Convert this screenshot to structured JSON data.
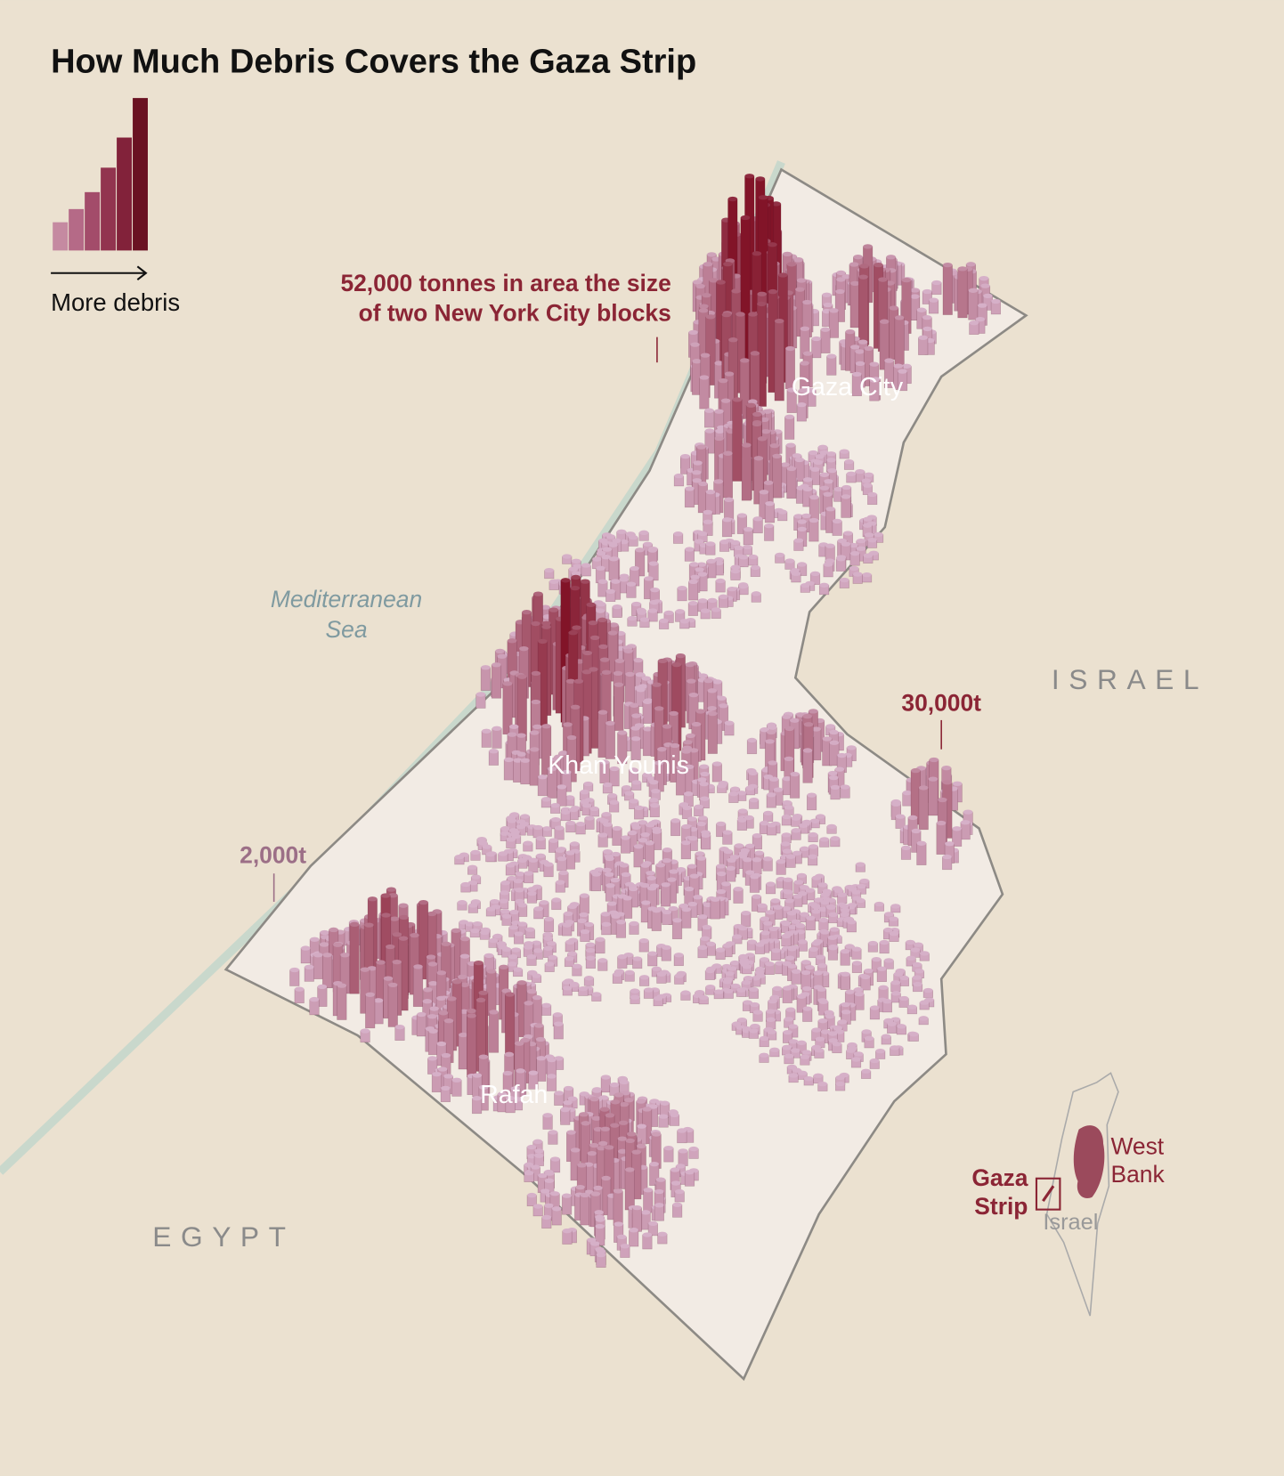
{
  "title": "How Much Debris Covers the Gaza Strip",
  "legend": {
    "label": "More debris"
  },
  "callouts": [
    {
      "lines": [
        "52,000 tonnes in area the size",
        "of two New York City blocks"
      ]
    },
    {
      "lines": [
        "30,000t"
      ]
    },
    {
      "lines": [
        "2,000t"
      ]
    }
  ],
  "cities": [
    "Gaza City",
    "Khan Younis",
    "Rafah"
  ],
  "sea": [
    "Mediterranean",
    "Sea"
  ],
  "countries": [
    "ISRAEL",
    "EGYPT"
  ],
  "inset": {
    "west_bank": [
      "West",
      "Bank"
    ],
    "gaza_strip": [
      "Gaza",
      "Strip"
    ],
    "israel": "Israel"
  }
}
